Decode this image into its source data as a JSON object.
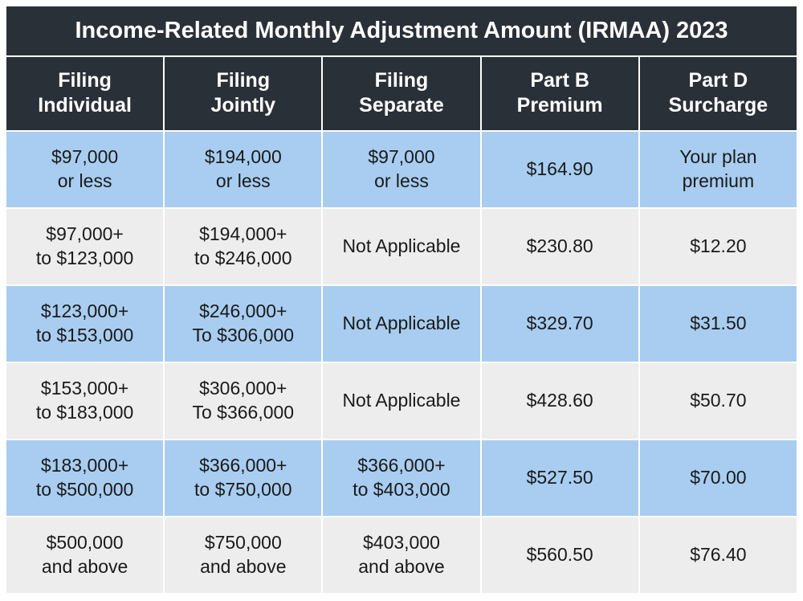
{
  "table": {
    "title": "Income-Related Monthly Adjustment Amount (IRMAA) 2023",
    "columns": [
      "Filing\nIndividual",
      "Filing\nJointly",
      "Filing\nSeparate",
      "Part B\nPremium",
      "Part D\nSurcharge"
    ],
    "rows": [
      {
        "shade": "blue",
        "cells": [
          "$97,000\nor less",
          "$194,000\nor less",
          "$97,000\nor less",
          "$164.90",
          "Your plan\npremium"
        ]
      },
      {
        "shade": "gray",
        "cells": [
          "$97,000+\nto $123,000",
          "$194,000+\nto $246,000",
          "Not Applicable",
          "$230.80",
          "$12.20"
        ]
      },
      {
        "shade": "blue",
        "cells": [
          "$123,000+\nto $153,000",
          "$246,000+\nTo $306,000",
          "Not Applicable",
          "$329.70",
          "$31.50"
        ]
      },
      {
        "shade": "gray",
        "cells": [
          "$153,000+\nto $183,000",
          "$306,000+\nTo $366,000",
          "Not Applicable",
          "$428.60",
          "$50.70"
        ]
      },
      {
        "shade": "blue",
        "cells": [
          "$183,000+\nto $500,000",
          "$366,000+\nto $750,000",
          "$366,000+\nto $403,000",
          "$527.50",
          "$70.00"
        ]
      },
      {
        "shade": "gray",
        "cells": [
          "$500,000\nand above",
          "$750,000\nand above",
          "$403,000\nand above",
          "$560.50",
          "$76.40"
        ]
      }
    ],
    "colors": {
      "header_bg": "#2a3038",
      "header_text": "#ffffff",
      "row_blue": "#a8cdf0",
      "row_gray": "#ededed",
      "border": "#ffffff",
      "text": "#1a1a1a"
    },
    "fontsize": {
      "title": 29,
      "header": 25,
      "cell": 23
    }
  }
}
